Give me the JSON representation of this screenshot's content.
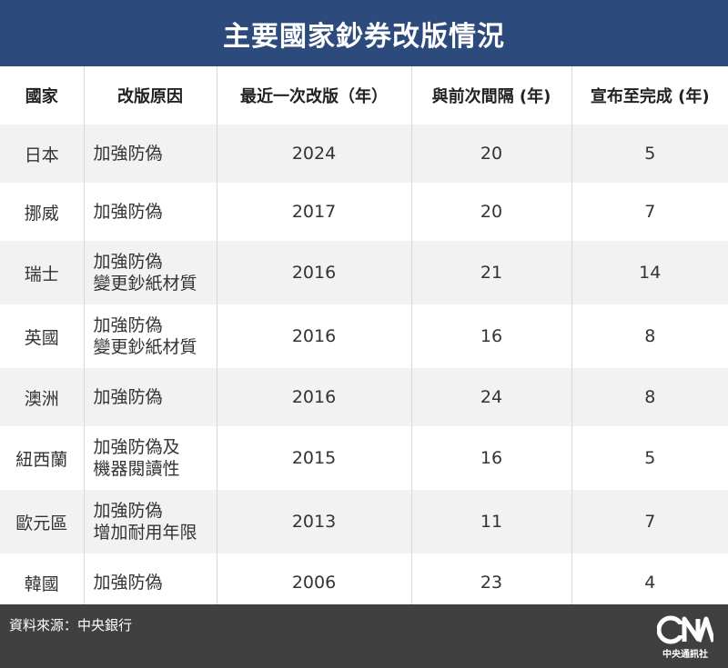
{
  "title": "主要國家鈔券改版情況",
  "headers": [
    "國家",
    "改版原因",
    "最近一次改版（年）",
    "與前次間隔 (年)",
    "宣布至完成 (年)"
  ],
  "rows": [
    {
      "country": "日本",
      "reason": [
        "加強防偽"
      ],
      "latest": "2024",
      "interval": "20",
      "announce_to_complete": "5"
    },
    {
      "country": "挪威",
      "reason": [
        "加強防偽"
      ],
      "latest": "2017",
      "interval": "20",
      "announce_to_complete": "7"
    },
    {
      "country": "瑞士",
      "reason": [
        "加強防偽",
        "變更鈔紙材質"
      ],
      "latest": "2016",
      "interval": "21",
      "announce_to_complete": "14"
    },
    {
      "country": "英國",
      "reason": [
        "加強防偽",
        "變更鈔紙材質"
      ],
      "latest": "2016",
      "interval": "16",
      "announce_to_complete": "8"
    },
    {
      "country": "澳洲",
      "reason": [
        "加強防偽"
      ],
      "latest": "2016",
      "interval": "24",
      "announce_to_complete": "8"
    },
    {
      "country": "紐西蘭",
      "reason": [
        "加強防偽及",
        "機器閱讀性"
      ],
      "latest": "2015",
      "interval": "16",
      "announce_to_complete": "5"
    },
    {
      "country": "歐元區",
      "reason": [
        "加強防偽",
        "增加耐用年限"
      ],
      "latest": "2013",
      "interval": "11",
      "announce_to_complete": "7"
    },
    {
      "country": "韓國",
      "reason": [
        "加強防偽"
      ],
      "latest": "2006",
      "interval": "23",
      "announce_to_complete": "4"
    }
  ],
  "footer": {
    "source": "資料來源：中央銀行",
    "logo_text": "中央通訊社",
    "logo_mark": "CNA"
  }
}
